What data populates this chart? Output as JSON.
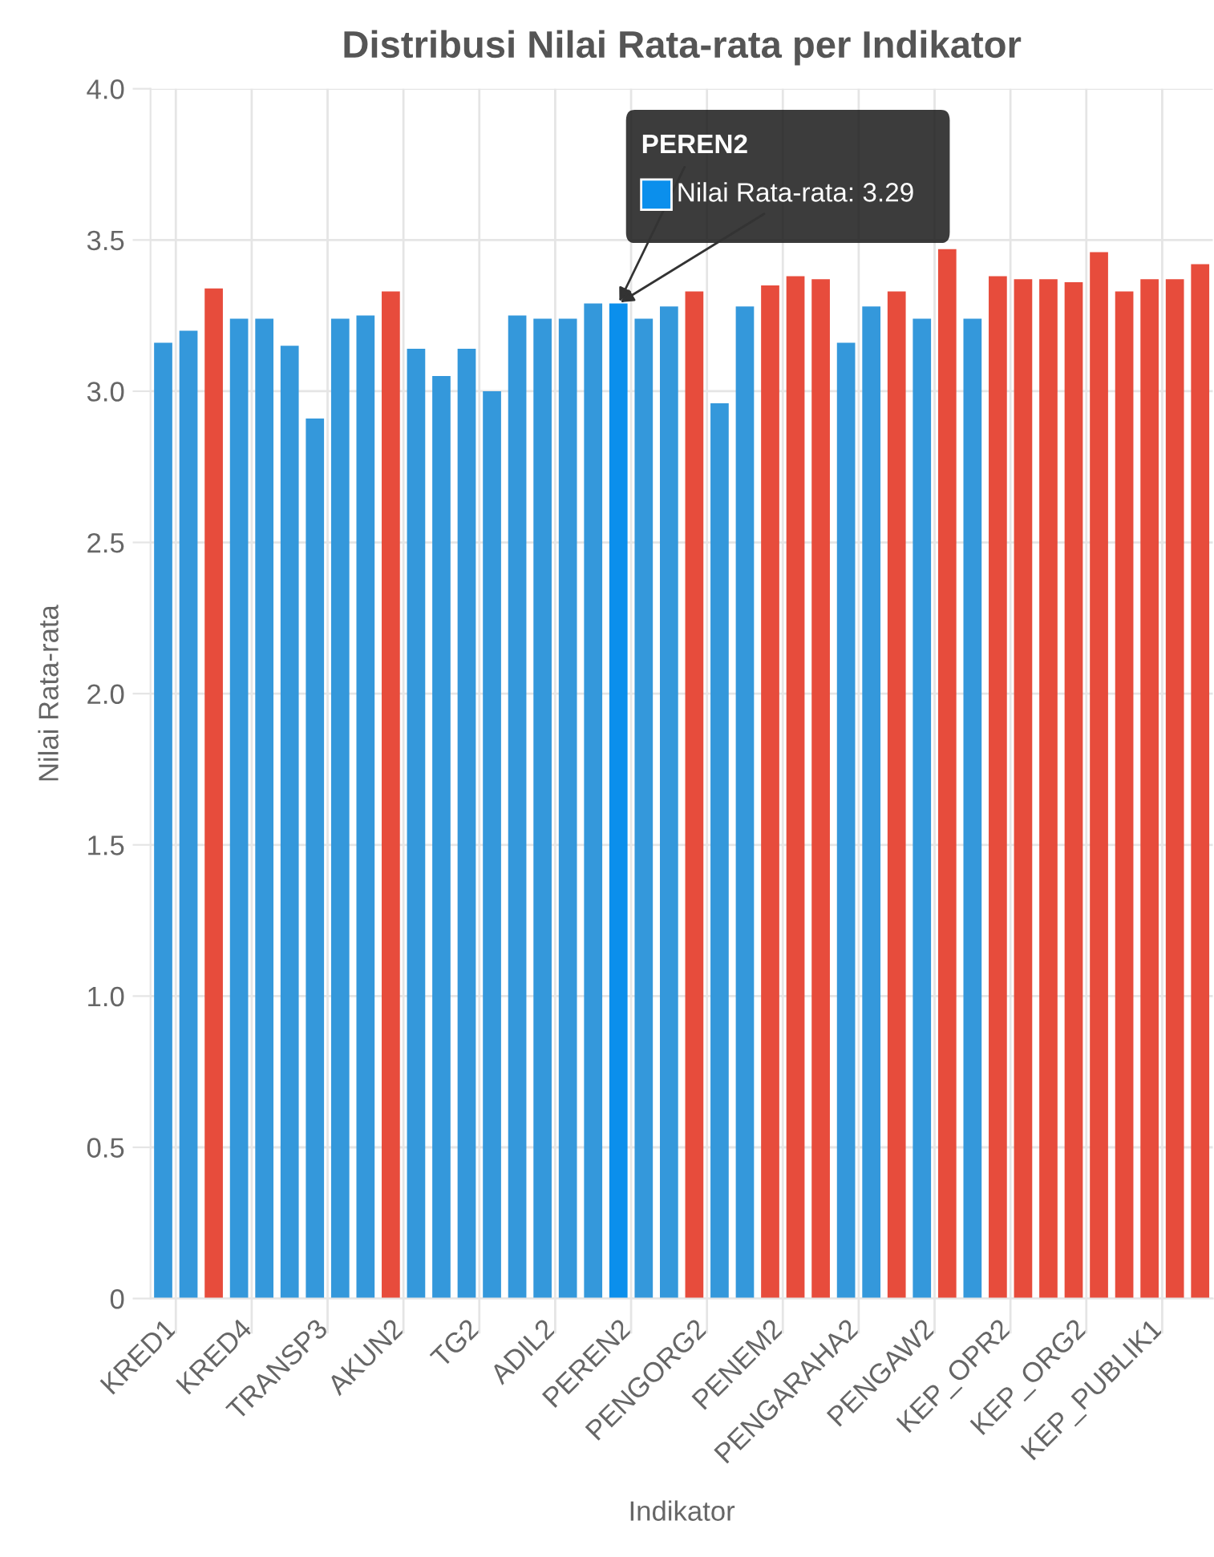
{
  "chart_data": {
    "type": "bar",
    "title": "Distribusi Nilai Rata-rata per Indikator",
    "xlabel": "Indikator",
    "ylabel": "Nilai Rata-rata",
    "categories": [
      "KRED1",
      null,
      null,
      "KRED4",
      null,
      null,
      "TRANSP3",
      null,
      null,
      "AKUN2",
      null,
      null,
      "TG2",
      null,
      null,
      "ADIL2",
      null,
      null,
      "PEREN2",
      null,
      null,
      "PENGORG2",
      null,
      null,
      "PENEM2",
      null,
      null,
      "PENGARAHA2",
      null,
      null,
      "PENGAW2",
      null,
      null,
      "KEP_OPR2",
      null,
      null,
      "KEP_ORG2",
      null,
      null,
      "KEP_PUBLIK1",
      null,
      null
    ],
    "values": [
      3.16,
      3.2,
      3.34,
      3.24,
      3.24,
      3.15,
      2.91,
      3.24,
      3.25,
      3.33,
      3.14,
      3.05,
      3.14,
      3.0,
      3.25,
      3.24,
      3.24,
      3.29,
      3.29,
      3.24,
      3.28,
      3.33,
      2.96,
      3.28,
      3.35,
      3.38,
      3.37,
      3.16,
      3.28,
      3.33,
      3.24,
      3.47,
      3.24,
      3.38,
      3.37,
      3.37,
      3.36,
      3.46,
      3.33,
      3.37,
      3.37,
      3.42
    ],
    "colors": [
      "#3498db",
      "#3498db",
      "#e74c3c",
      "#3498db",
      "#3498db",
      "#3498db",
      "#3498db",
      "#3498db",
      "#3498db",
      "#e74c3c",
      "#3498db",
      "#3498db",
      "#3498db",
      "#3498db",
      "#3498db",
      "#3498db",
      "#3498db",
      "#3498db",
      "#0b8fec",
      "#3498db",
      "#3498db",
      "#e74c3c",
      "#3498db",
      "#3498db",
      "#e74c3c",
      "#e74c3c",
      "#e74c3c",
      "#3498db",
      "#3498db",
      "#e74c3c",
      "#3498db",
      "#e74c3c",
      "#3498db",
      "#e74c3c",
      "#e74c3c",
      "#e74c3c",
      "#e74c3c",
      "#e74c3c",
      "#e74c3c",
      "#e74c3c",
      "#e74c3c",
      "#e74c3c"
    ],
    "ylim": [
      0,
      4.0
    ],
    "yticks": [
      0,
      0.5,
      {
        "value": 1,
        "label": "1.0"
      },
      1.5,
      {
        "value": 2,
        "label": "2.0"
      },
      2.5,
      {
        "value": 3,
        "label": "3.0"
      },
      3.5,
      {
        "value": 4,
        "label": "4.0"
      }
    ],
    "grid": true,
    "annotations": [
      {
        "text": "PEREN2",
        "x": "PEREN2",
        "y": 3.29
      },
      {
        "text": "Nilai Rata-rata: 3.29",
        "x": "PEREN2",
        "y": 3.29
      }
    ]
  }
}
